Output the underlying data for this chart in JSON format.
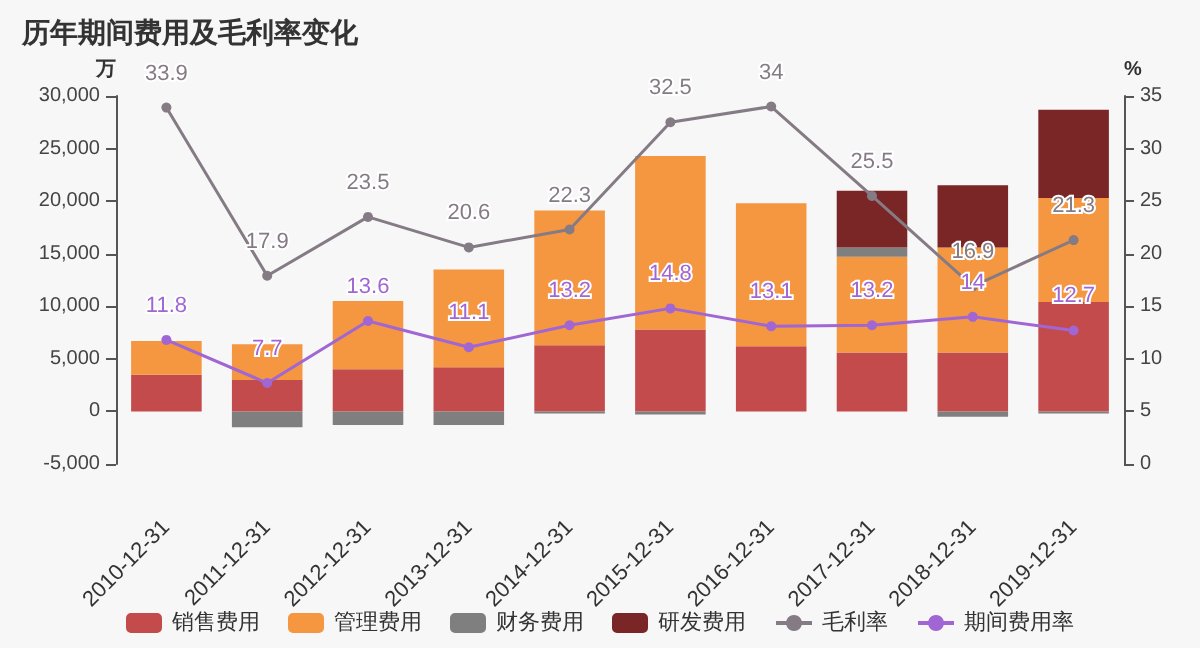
{
  "chart_data": {
    "type": "bar",
    "title": "历年期间费用及毛利率变化",
    "ylabel": "万",
    "y2label": "%",
    "categories": [
      "2010-12-31",
      "2011-12-31",
      "2012-12-31",
      "2013-12-31",
      "2014-12-31",
      "2015-12-31",
      "2016-12-31",
      "2017-12-31",
      "2018-12-31",
      "2019-12-31"
    ],
    "stacked": true,
    "series": [
      {
        "name": "销售费用",
        "color": "#c44b4b",
        "values": [
          3500,
          3000,
          4000,
          4200,
          6300,
          7800,
          6200,
          5600,
          5600,
          10400
        ]
      },
      {
        "name": "管理费用",
        "color": "#f59640",
        "values": [
          3200,
          3400,
          6500,
          9300,
          12800,
          16500,
          13600,
          9100,
          10000,
          9900
        ]
      },
      {
        "name": "财务费用",
        "color": "#7f7f7f",
        "values": [
          null,
          -1500,
          -1300,
          -1300,
          -200,
          -300,
          null,
          900,
          -500,
          -200
        ]
      },
      {
        "name": "研发费用",
        "color": "#7b2626",
        "values": [
          null,
          null,
          null,
          null,
          null,
          null,
          null,
          5400,
          5900,
          8400
        ]
      },
      {
        "name": "毛利率",
        "type": "line",
        "axis": "y2",
        "color": "#857b85",
        "values": [
          33.9,
          17.9,
          23.5,
          20.6,
          22.3,
          32.5,
          34,
          25.5,
          16.9,
          21.3
        ],
        "value_labels": [
          "33.9",
          "17.9",
          "23.5",
          "20.6",
          "22.3",
          "32.5",
          "34",
          "25.5",
          "16.9",
          "21.3"
        ]
      },
      {
        "name": "期间费用率",
        "type": "line",
        "axis": "y2",
        "color": "#a066d3",
        "values": [
          11.8,
          7.7,
          13.6,
          11.1,
          13.2,
          14.8,
          13.1,
          13.2,
          14,
          12.7
        ],
        "value_labels": [
          "11.8",
          "7.7",
          "13.6",
          "11.1",
          "13.2",
          "14.8",
          "13.1",
          "13.2",
          "14",
          "12.7"
        ]
      }
    ],
    "ylim": [
      -5000,
      30000
    ],
    "yticks": [
      {
        "value": -5000,
        "label": "-5,000"
      },
      0,
      {
        "value": 5000,
        "label": "5,000"
      },
      {
        "value": 10000,
        "label": "10,000"
      },
      {
        "value": 15000,
        "label": "15,000"
      },
      {
        "value": 20000,
        "label": "20,000"
      },
      {
        "value": 25000,
        "label": "25,000"
      },
      {
        "value": 30000,
        "label": "30,000"
      }
    ],
    "y2lim": [
      0,
      35
    ],
    "y2ticks": [
      0,
      5,
      10,
      15,
      20,
      25,
      30,
      35
    ],
    "grid": false,
    "legend": "bottom",
    "marker": "circle"
  }
}
